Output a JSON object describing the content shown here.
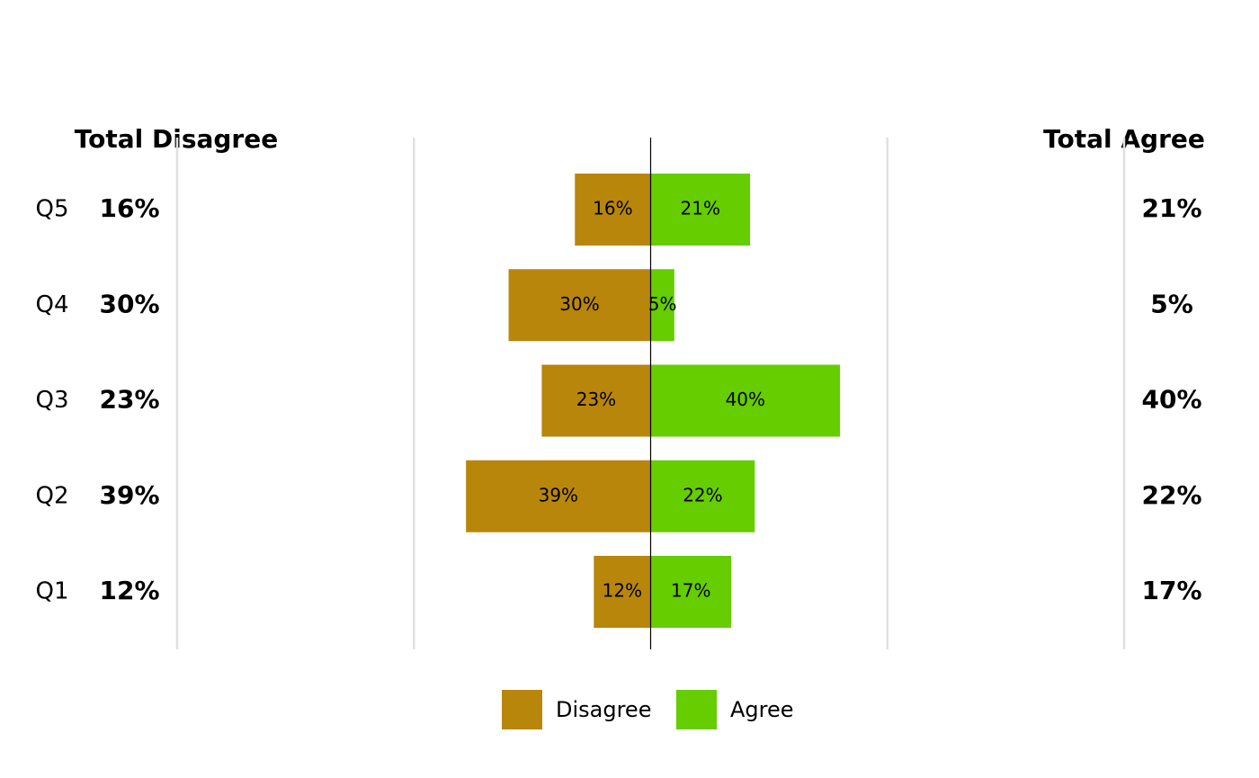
{
  "chart_data": {
    "type": "diverging_bar",
    "categories": [
      "Q5",
      "Q4",
      "Q3",
      "Q2",
      "Q1"
    ],
    "series": [
      {
        "name": "Disagree",
        "color": "#b8860b",
        "values": [
          16,
          30,
          23,
          39,
          12
        ],
        "value_labels": [
          "16%",
          "30%",
          "23%",
          "39%",
          "12%"
        ]
      },
      {
        "name": "Agree",
        "color": "#66cd00",
        "values": [
          21,
          5,
          40,
          22,
          17
        ],
        "value_labels": [
          "21%",
          "5%",
          "40%",
          "22%",
          "17%"
        ]
      }
    ],
    "left_total_title": "Total Disagree",
    "right_total_title": "Total Agree",
    "xlim": [
      -100,
      100
    ],
    "xticks": [
      -100,
      -50,
      0,
      50,
      100
    ],
    "grid": true,
    "legend": "bottom"
  }
}
